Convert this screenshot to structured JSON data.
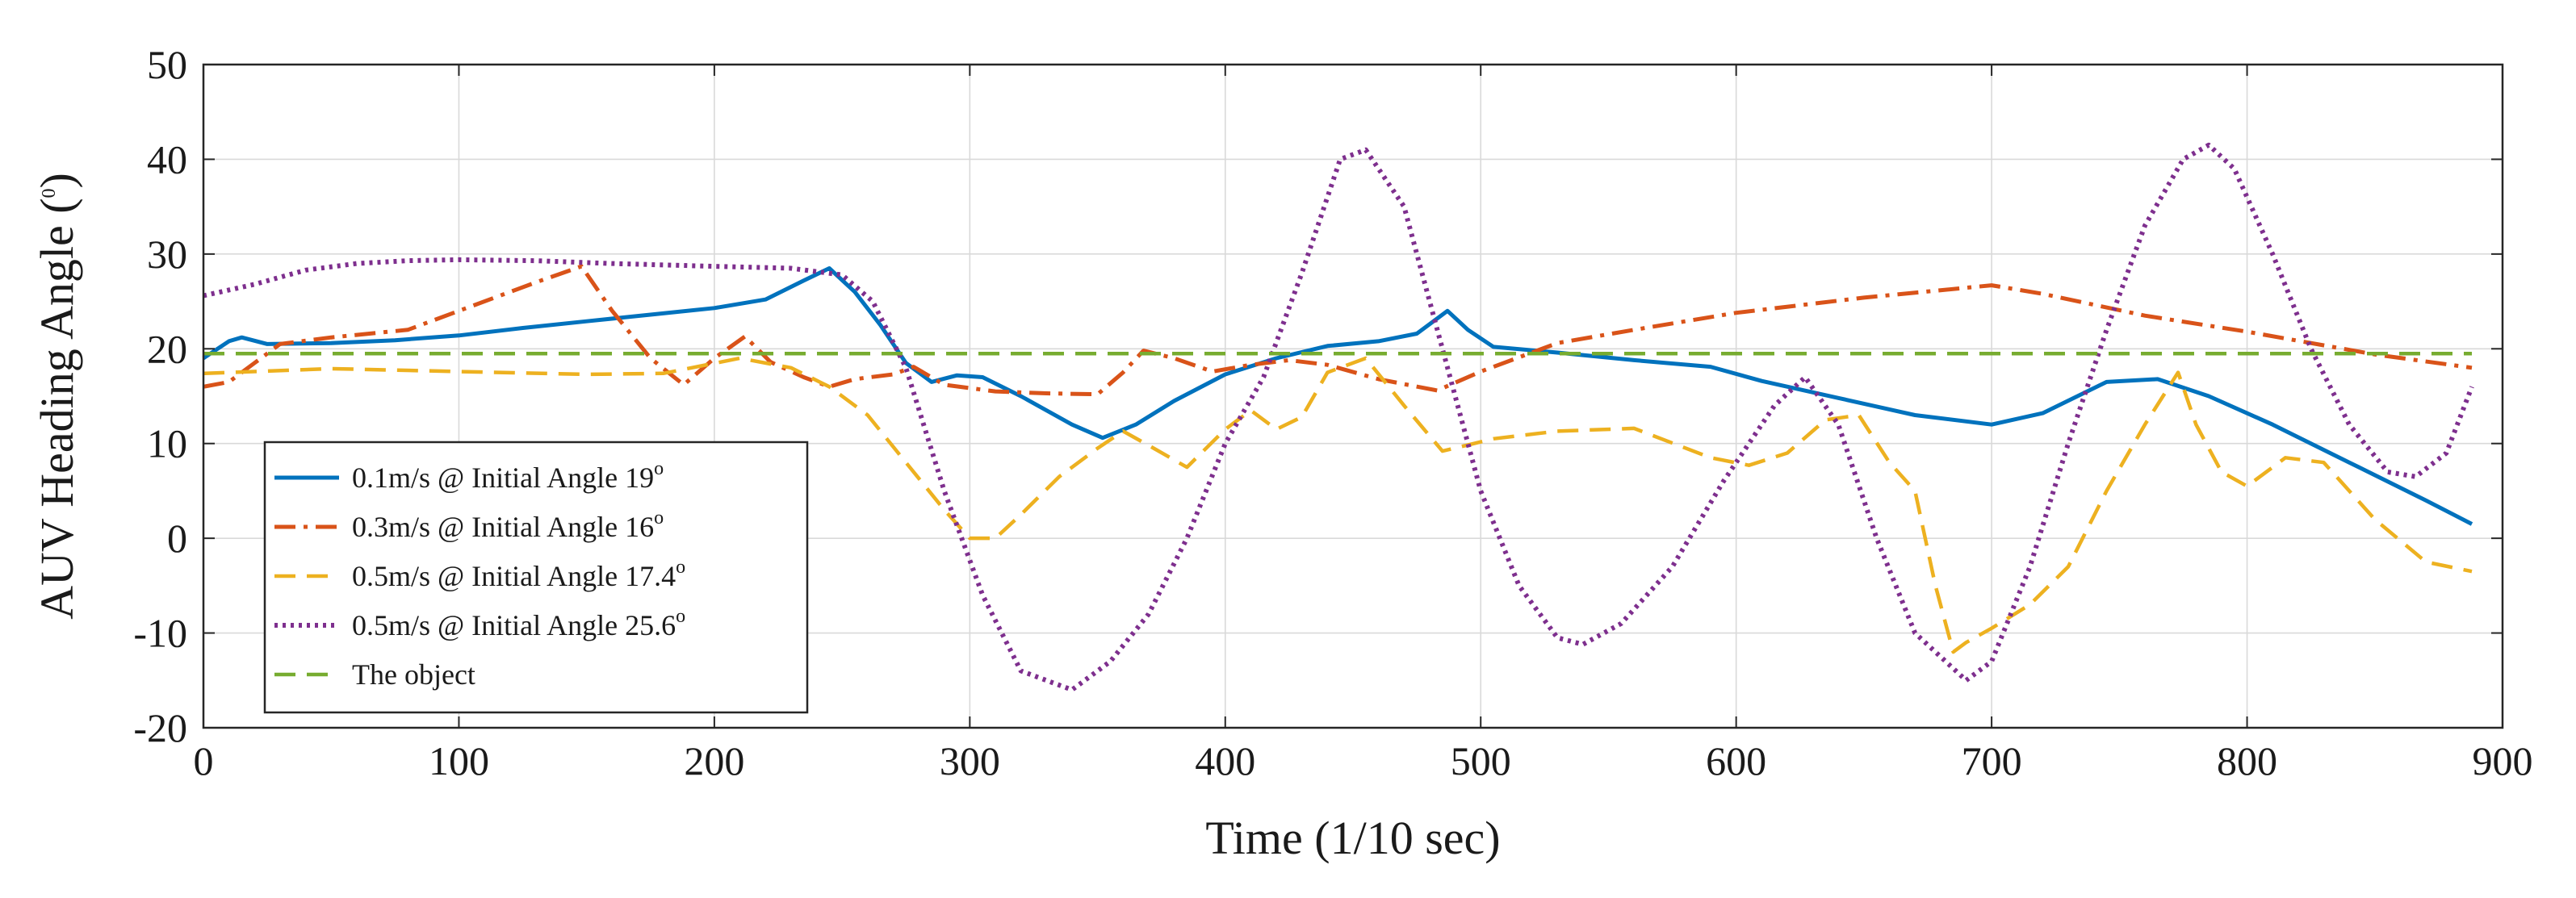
{
  "chart_data": {
    "type": "line",
    "title": "",
    "xlabel": "Time (1/10 sec)",
    "ylabel": "AUV Heading Angle (",
    "ylabel_sup": "0",
    "ylabel_suffix": ")",
    "xlim": [
      0,
      900
    ],
    "ylim": [
      -20,
      50
    ],
    "xticks": [
      0,
      100,
      200,
      300,
      400,
      500,
      600,
      700,
      800,
      900
    ],
    "yticks": [
      -20,
      -10,
      0,
      10,
      20,
      30,
      40,
      50
    ],
    "grid": true,
    "legend_position": "lower-left",
    "series": [
      {
        "name": "0.1m/s @ Initial Angle 19",
        "name_sup": "o",
        "color": "#0072bd",
        "dash": "solid",
        "points": [
          [
            0,
            19
          ],
          [
            10,
            20.8
          ],
          [
            15,
            21.2
          ],
          [
            25,
            20.5
          ],
          [
            50,
            20.6
          ],
          [
            75,
            20.9
          ],
          [
            100,
            21.4
          ],
          [
            125,
            22.2
          ],
          [
            150,
            22.9
          ],
          [
            175,
            23.6
          ],
          [
            200,
            24.3
          ],
          [
            220,
            25.2
          ],
          [
            235,
            27.2
          ],
          [
            245,
            28.5
          ],
          [
            255,
            26
          ],
          [
            265,
            22.5
          ],
          [
            275,
            18.5
          ],
          [
            285,
            16.5
          ],
          [
            295,
            17.2
          ],
          [
            305,
            17
          ],
          [
            320,
            15
          ],
          [
            340,
            12
          ],
          [
            352,
            10.6
          ],
          [
            365,
            12
          ],
          [
            380,
            14.5
          ],
          [
            400,
            17.3
          ],
          [
            420,
            19
          ],
          [
            440,
            20.3
          ],
          [
            460,
            20.8
          ],
          [
            475,
            21.6
          ],
          [
            487,
            24
          ],
          [
            495,
            22
          ],
          [
            505,
            20.2
          ],
          [
            530,
            19.6
          ],
          [
            560,
            18.8
          ],
          [
            590,
            18.1
          ],
          [
            610,
            16.6
          ],
          [
            640,
            14.8
          ],
          [
            670,
            13
          ],
          [
            700,
            12
          ],
          [
            720,
            13.2
          ],
          [
            745,
            16.5
          ],
          [
            765,
            16.8
          ],
          [
            785,
            15
          ],
          [
            810,
            12
          ],
          [
            840,
            8
          ],
          [
            870,
            4
          ],
          [
            888,
            1.5
          ]
        ]
      },
      {
        "name": "0.3m/s @ Initial Angle 16",
        "name_sup": "o",
        "color": "#d95319",
        "dash": "dashdot",
        "points": [
          [
            0,
            16
          ],
          [
            10,
            16.5
          ],
          [
            20,
            18.5
          ],
          [
            30,
            20.5
          ],
          [
            50,
            21.2
          ],
          [
            80,
            22
          ],
          [
            100,
            24
          ],
          [
            130,
            27
          ],
          [
            148,
            28.7
          ],
          [
            160,
            24
          ],
          [
            175,
            19
          ],
          [
            188,
            16.2
          ],
          [
            200,
            19
          ],
          [
            212,
            21.3
          ],
          [
            222,
            18.6
          ],
          [
            235,
            17
          ],
          [
            245,
            16
          ],
          [
            255,
            16.8
          ],
          [
            270,
            17.3
          ],
          [
            278,
            18.1
          ],
          [
            290,
            16.2
          ],
          [
            310,
            15.5
          ],
          [
            330,
            15.3
          ],
          [
            350,
            15.2
          ],
          [
            360,
            17.5
          ],
          [
            368,
            19.8
          ],
          [
            380,
            19
          ],
          [
            395,
            17.6
          ],
          [
            410,
            18.3
          ],
          [
            425,
            18.8
          ],
          [
            440,
            18.3
          ],
          [
            460,
            16.8
          ],
          [
            483,
            15.6
          ],
          [
            500,
            17.6
          ],
          [
            530,
            20.6
          ],
          [
            560,
            22
          ],
          [
            600,
            23.8
          ],
          [
            650,
            25.4
          ],
          [
            700,
            26.7
          ],
          [
            720,
            25.8
          ],
          [
            760,
            23.5
          ],
          [
            800,
            21.8
          ],
          [
            850,
            19.4
          ],
          [
            888,
            18
          ]
        ]
      },
      {
        "name": "0.5m/s @ Initial Angle 17.4",
        "name_sup": "o",
        "color": "#edb120",
        "dash": "dashed",
        "points": [
          [
            0,
            17.4
          ],
          [
            20,
            17.6
          ],
          [
            50,
            17.9
          ],
          [
            100,
            17.6
          ],
          [
            150,
            17.3
          ],
          [
            180,
            17.4
          ],
          [
            210,
            19
          ],
          [
            230,
            18
          ],
          [
            245,
            16
          ],
          [
            260,
            13
          ],
          [
            275,
            8
          ],
          [
            290,
            3
          ],
          [
            300,
            0
          ],
          [
            310,
            0
          ],
          [
            320,
            2.5
          ],
          [
            335,
            6.5
          ],
          [
            350,
            9.5
          ],
          [
            360,
            11.3
          ],
          [
            372,
            9.5
          ],
          [
            385,
            7.5
          ],
          [
            400,
            11.5
          ],
          [
            410,
            13.5
          ],
          [
            420,
            11.5
          ],
          [
            430,
            12.8
          ],
          [
            440,
            17.5
          ],
          [
            455,
            19
          ],
          [
            470,
            14
          ],
          [
            485,
            9.2
          ],
          [
            505,
            10.5
          ],
          [
            530,
            11.3
          ],
          [
            560,
            11.6
          ],
          [
            590,
            8.5
          ],
          [
            605,
            7.7
          ],
          [
            620,
            9
          ],
          [
            635,
            12.5
          ],
          [
            648,
            13
          ],
          [
            660,
            8
          ],
          [
            670,
            5
          ],
          [
            678,
            -5
          ],
          [
            685,
            -12
          ],
          [
            690,
            -11
          ],
          [
            700,
            -9.5
          ],
          [
            715,
            -7
          ],
          [
            730,
            -3
          ],
          [
            745,
            5
          ],
          [
            760,
            12
          ],
          [
            773,
            17.5
          ],
          [
            780,
            12
          ],
          [
            790,
            7
          ],
          [
            800,
            5.5
          ],
          [
            815,
            8.5
          ],
          [
            830,
            8
          ],
          [
            850,
            2
          ],
          [
            870,
            -2.5
          ],
          [
            888,
            -3.5
          ]
        ]
      },
      {
        "name": "0.5m/s @ Initial Angle 25.6",
        "name_sup": "o",
        "color": "#7e2f8e",
        "dash": "dotted",
        "points": [
          [
            0,
            25.6
          ],
          [
            20,
            26.8
          ],
          [
            40,
            28.3
          ],
          [
            60,
            29
          ],
          [
            80,
            29.3
          ],
          [
            100,
            29.4
          ],
          [
            130,
            29.3
          ],
          [
            160,
            29
          ],
          [
            200,
            28.7
          ],
          [
            230,
            28.5
          ],
          [
            250,
            27.8
          ],
          [
            262,
            25
          ],
          [
            275,
            18
          ],
          [
            290,
            5
          ],
          [
            305,
            -6
          ],
          [
            320,
            -14
          ],
          [
            340,
            -16
          ],
          [
            355,
            -13
          ],
          [
            370,
            -8
          ],
          [
            385,
            0
          ],
          [
            400,
            10
          ],
          [
            415,
            17
          ],
          [
            430,
            28
          ],
          [
            445,
            40
          ],
          [
            455,
            41
          ],
          [
            470,
            35
          ],
          [
            485,
            20
          ],
          [
            500,
            5
          ],
          [
            515,
            -5
          ],
          [
            530,
            -10.5
          ],
          [
            540,
            -11.2
          ],
          [
            555,
            -9
          ],
          [
            575,
            -3
          ],
          [
            595,
            6
          ],
          [
            615,
            14
          ],
          [
            627,
            17
          ],
          [
            640,
            12
          ],
          [
            655,
            0
          ],
          [
            670,
            -10
          ],
          [
            690,
            -15
          ],
          [
            700,
            -13
          ],
          [
            715,
            -3
          ],
          [
            730,
            10
          ],
          [
            745,
            22
          ],
          [
            760,
            33
          ],
          [
            775,
            40
          ],
          [
            785,
            41.5
          ],
          [
            795,
            39
          ],
          [
            810,
            30
          ],
          [
            825,
            20
          ],
          [
            840,
            12
          ],
          [
            855,
            7
          ],
          [
            866,
            6.5
          ],
          [
            878,
            9
          ],
          [
            888,
            16
          ]
        ]
      },
      {
        "name": "The object",
        "name_sup": "",
        "color": "#77ac30",
        "dash": "dashed",
        "points": [
          [
            0,
            19.5
          ],
          [
            888,
            19.5
          ]
        ]
      }
    ]
  }
}
